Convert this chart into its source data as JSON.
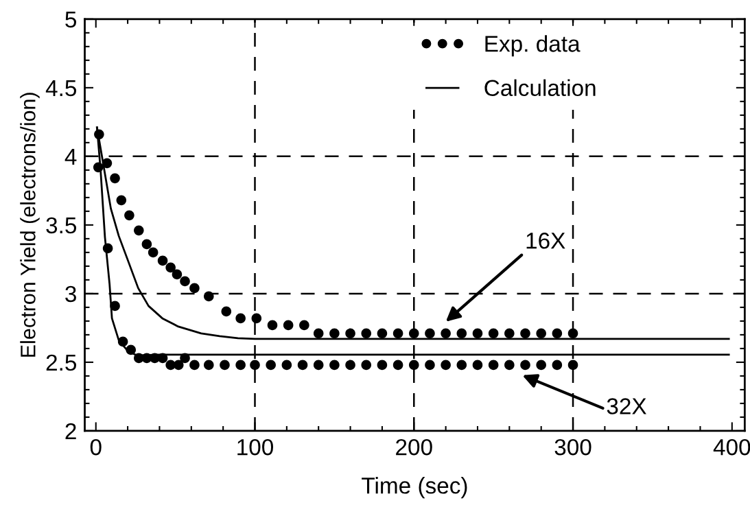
{
  "chart_data": {
    "type": "scatter",
    "xlabel": "Time (sec)",
    "ylabel": "Electron Yield (electrons/ion)",
    "xlim": [
      -7,
      408
    ],
    "ylim": [
      2,
      5
    ],
    "xticks": [
      0,
      100,
      200,
      300,
      400
    ],
    "yticks": [
      2,
      2.5,
      3,
      3.5,
      4,
      4.5,
      5
    ],
    "grid": false,
    "legend": "top right",
    "series": [
      {
        "name": "Exp. data",
        "marker": "circle",
        "color": "#000000",
        "x": [
          2,
          7,
          12,
          16,
          21,
          27,
          32,
          36,
          42,
          47,
          51,
          56,
          62,
          71,
          82,
          91,
          101,
          111,
          121,
          131,
          140,
          150,
          160,
          170,
          180,
          190,
          200,
          210,
          220,
          230,
          240,
          250,
          260,
          270,
          280,
          290,
          300
        ],
        "values": [
          4.16,
          3.95,
          3.84,
          3.68,
          3.57,
          3.46,
          3.36,
          3.3,
          3.24,
          3.19,
          3.14,
          3.09,
          3.04,
          2.98,
          2.87,
          2.82,
          2.82,
          2.77,
          2.77,
          2.77,
          2.71,
          2.71,
          2.71,
          2.71,
          2.71,
          2.71,
          2.71,
          2.71,
          2.71,
          2.71,
          2.71,
          2.71,
          2.71,
          2.71,
          2.71,
          2.71,
          2.71
        ]
      },
      {
        "marker": "circle",
        "color": "#000000",
        "x": [
          1.5,
          7.5,
          12,
          17,
          22,
          27,
          32,
          37,
          42,
          47,
          52,
          56,
          62,
          71,
          81,
          91,
          100,
          110,
          120,
          130,
          140,
          150,
          160,
          170,
          180,
          190,
          200,
          210,
          220,
          230,
          240,
          250,
          260,
          270,
          280,
          290,
          300
        ],
        "values": [
          3.92,
          3.33,
          2.91,
          2.65,
          2.59,
          2.53,
          2.53,
          2.53,
          2.53,
          2.48,
          2.48,
          2.53,
          2.48,
          2.48,
          2.48,
          2.48,
          2.48,
          2.48,
          2.48,
          2.48,
          2.48,
          2.48,
          2.48,
          2.48,
          2.48,
          2.48,
          2.48,
          2.48,
          2.48,
          2.48,
          2.48,
          2.48,
          2.48,
          2.48,
          2.48,
          2.48,
          2.48
        ]
      },
      {
        "name": "Calculation",
        "type": "line",
        "color": "#000000",
        "line_style": "solid",
        "x": [
          0.7,
          5,
          9.4,
          14.4,
          20.2,
          26.6,
          33.1,
          41.8,
          51.8,
          66.2,
          77.8,
          89.3,
          100,
          200,
          300,
          398
        ],
        "values": [
          4.21,
          3.92,
          3.62,
          3.42,
          3.24,
          3.04,
          2.91,
          2.82,
          2.76,
          2.71,
          2.69,
          2.675,
          2.67,
          2.67,
          2.67,
          2.67
        ]
      },
      {
        "type": "line",
        "color": "#000000",
        "line_style": "solid",
        "x": [
          0.7,
          2.9,
          5.7,
          8.6,
          10.1,
          14.4,
          20.2,
          25.9,
          40,
          100,
          200,
          300,
          398
        ],
        "values": [
          4.21,
          3.91,
          3.41,
          3.07,
          2.82,
          2.66,
          2.58,
          2.55,
          2.555,
          2.555,
          2.555,
          2.555,
          2.555
        ]
      }
    ],
    "ref_lines": [
      {
        "axis": "y",
        "value": 3,
        "color": "#000000",
        "line_style": "dashed"
      },
      {
        "axis": "y",
        "value": 4,
        "color": "#000000",
        "line_style": "dashed"
      },
      {
        "axis": "x",
        "value": 100,
        "color": "#000000",
        "line_style": "dashed"
      },
      {
        "axis": "x",
        "value": 200,
        "color": "#000000",
        "line_style": "dashed"
      },
      {
        "axis": "x",
        "value": 300,
        "color": "#000000",
        "line_style": "dashed"
      }
    ],
    "annotations": [
      "16X",
      "32X"
    ]
  }
}
